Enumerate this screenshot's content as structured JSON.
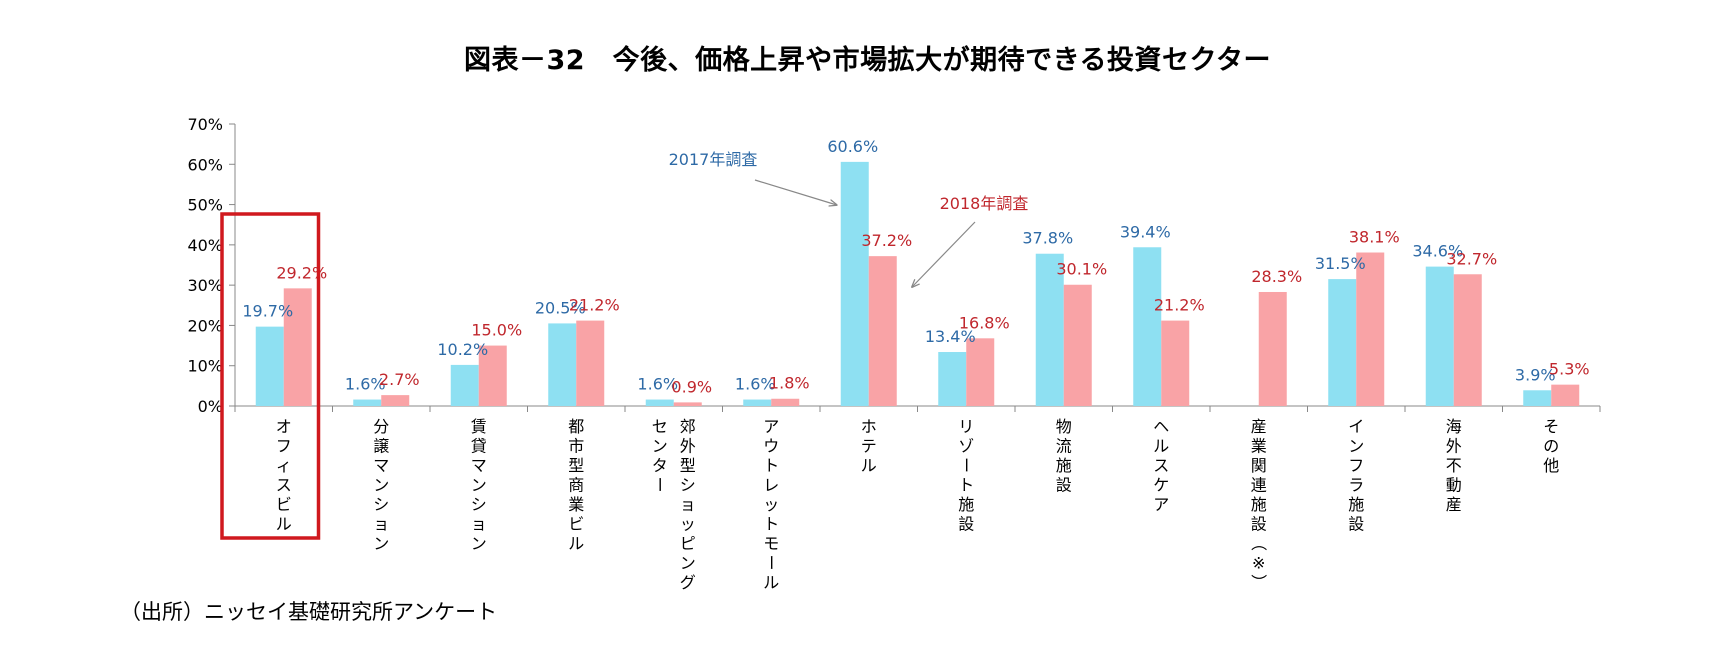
{
  "chart_data": {
    "type": "bar",
    "title": "図表－32　今後、価格上昇や市場拡大が期待できる投資セクター",
    "xlabel": "",
    "ylabel": "",
    "ylim": [
      0,
      70
    ],
    "yticks": [
      "0%",
      "10%",
      "20%",
      "30%",
      "40%",
      "50%",
      "60%",
      "70%"
    ],
    "categories": [
      "オフィスビル",
      "分譲マンション",
      "賃貸マンション",
      "都市型商業ビル",
      "郊外型ショッピングセンター",
      "アウトレットモール",
      "ホテル",
      "リゾート施設",
      "物流施設",
      "ヘルスケア",
      "産業関連施設（※）",
      "インフラ施設",
      "海外不動産",
      "その他"
    ],
    "category_lines": [
      [
        "オフィスビル"
      ],
      [
        "分譲マンション"
      ],
      [
        "賃貸マンション"
      ],
      [
        "都市型商業ビル"
      ],
      [
        "郊外型ショッピング",
        "センター"
      ],
      [
        "アウトレットモール"
      ],
      [
        "ホテル"
      ],
      [
        "リゾート施設"
      ],
      [
        "物流施設"
      ],
      [
        "ヘルスケア"
      ],
      [
        "産業関連施設（※）"
      ],
      [
        "インフラ施設"
      ],
      [
        "海外不動産"
      ],
      [
        "その他"
      ]
    ],
    "series": [
      {
        "name": "2017年調査",
        "color": "#8ee0f2",
        "label_color": "#2e6aa6",
        "values": [
          19.7,
          1.6,
          10.2,
          20.5,
          1.6,
          1.6,
          60.6,
          13.4,
          37.8,
          39.4,
          null,
          31.5,
          34.6,
          3.9
        ],
        "labels": [
          "19.7%",
          "1.6%",
          "10.2%",
          "20.5%",
          "1.6%",
          "1.6%",
          "60.6%",
          "13.4%",
          "37.8%",
          "39.4%",
          "",
          "31.5%",
          "34.6%",
          "3.9%"
        ]
      },
      {
        "name": "2018年調査",
        "color": "#f9a3a6",
        "label_color": "#c0272d",
        "values": [
          29.2,
          2.7,
          15.0,
          21.2,
          0.9,
          1.8,
          37.2,
          16.8,
          30.1,
          21.2,
          28.3,
          38.1,
          32.7,
          5.3
        ],
        "labels": [
          "29.2%",
          "2.7%",
          "15.0%",
          "21.2%",
          "0.9%",
          "1.8%",
          "37.2%",
          "16.8%",
          "30.1%",
          "21.2%",
          "28.3%",
          "38.1%",
          "32.7%",
          "5.3%"
        ]
      }
    ],
    "annotations": [
      {
        "text": "2017年調査",
        "series": 0,
        "points_to": "ホテル"
      },
      {
        "text": "2018年調査",
        "series": 1,
        "points_to": "ホテル"
      }
    ],
    "highlight": {
      "category": "オフィスビル",
      "color": "#d0191e"
    },
    "grid": false,
    "legend": "none"
  },
  "source": "（出所）ニッセイ基礎研究所アンケート"
}
